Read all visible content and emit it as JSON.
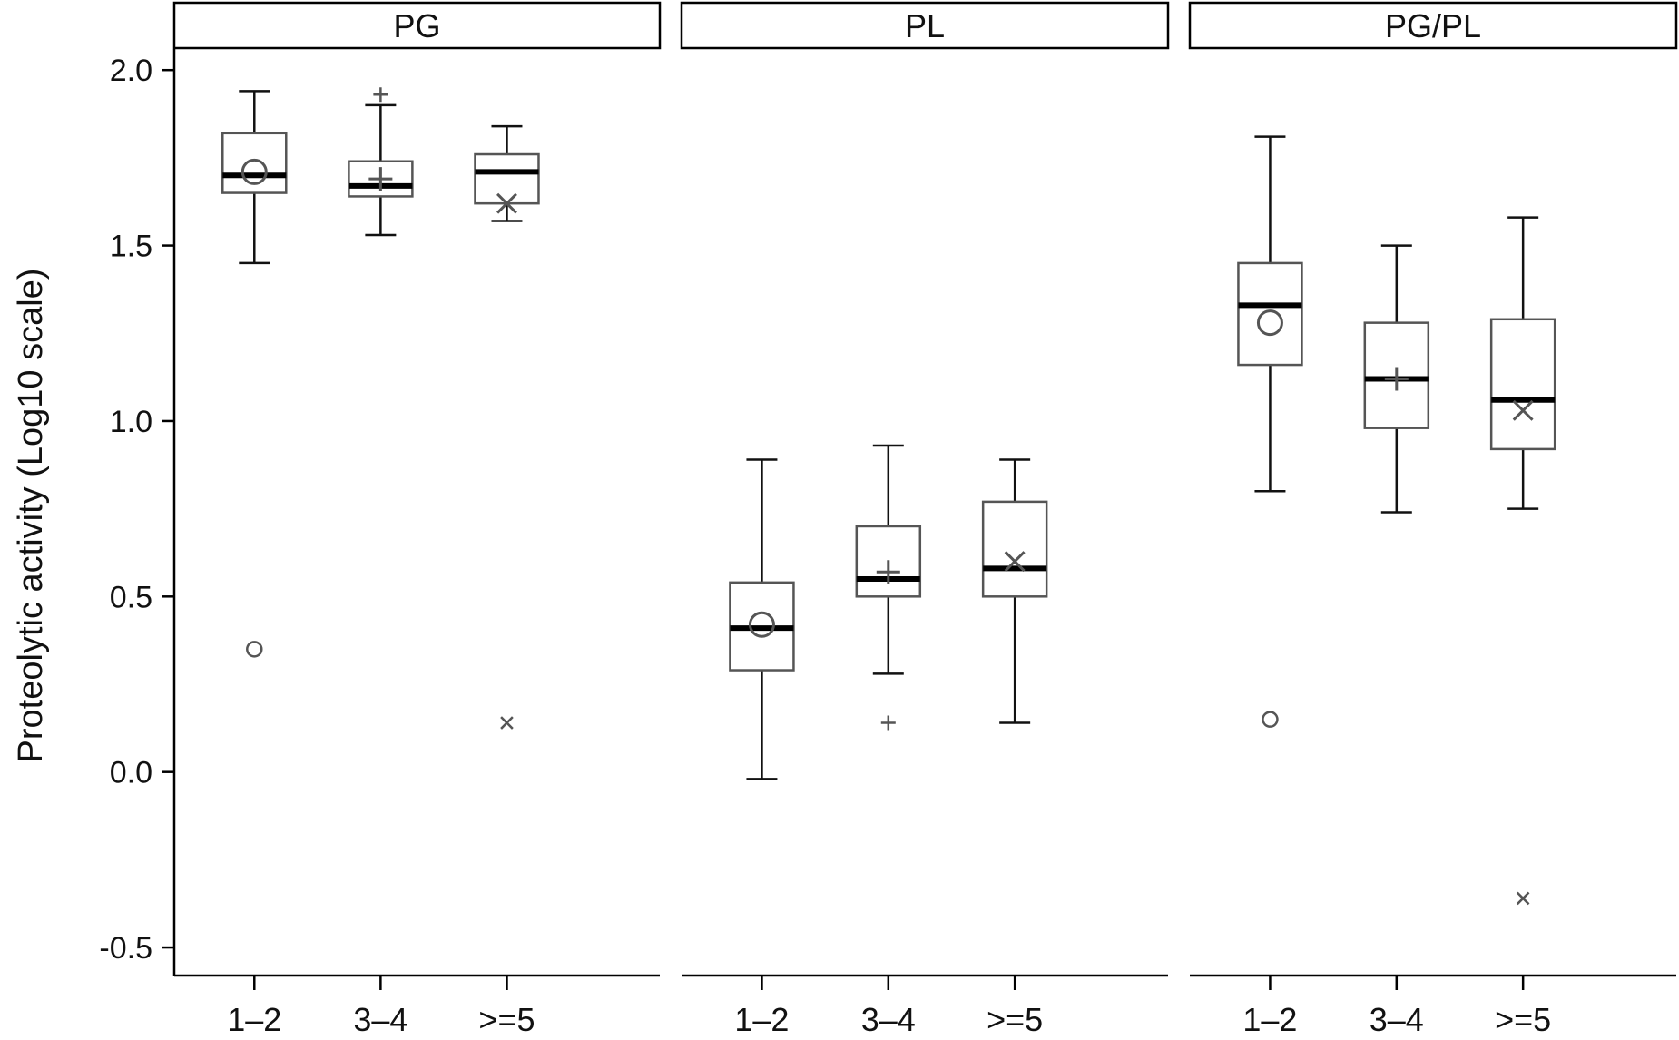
{
  "chart_data": {
    "type": "boxplot",
    "ylabel": "Proteolytic activity (Log10 scale)",
    "ylim": [
      -0.58,
      2.06
    ],
    "yticks": [
      -0.5,
      0.0,
      0.5,
      1.0,
      1.5,
      2.0
    ],
    "ytick_labels": [
      "-0.5",
      "0.0",
      "0.5",
      "1.0",
      "1.5",
      "2.0"
    ],
    "categories": [
      "1–2",
      "3–4",
      ">=5"
    ],
    "mean_markers": [
      "circle",
      "plus",
      "cross"
    ],
    "grid": false,
    "panels": [
      {
        "name": "PG",
        "boxes": [
          {
            "category": "1–2",
            "whisker_low": 1.45,
            "q1": 1.65,
            "median": 1.7,
            "q3": 1.82,
            "whisker_high": 1.94,
            "mean": 1.71,
            "outliers": [
              0.35
            ]
          },
          {
            "category": "3–4",
            "whisker_low": 1.53,
            "q1": 1.64,
            "median": 1.67,
            "q3": 1.74,
            "whisker_high": 1.9,
            "mean": 1.69,
            "outliers": [
              1.93
            ]
          },
          {
            "category": ">=5",
            "whisker_low": 1.57,
            "q1": 1.62,
            "median": 1.71,
            "q3": 1.76,
            "whisker_high": 1.84,
            "mean": 1.62,
            "outliers": [
              0.14
            ]
          }
        ]
      },
      {
        "name": "PL",
        "boxes": [
          {
            "category": "1–2",
            "whisker_low": -0.02,
            "q1": 0.29,
            "median": 0.41,
            "q3": 0.54,
            "whisker_high": 0.89,
            "mean": 0.42,
            "outliers": []
          },
          {
            "category": "3–4",
            "whisker_low": 0.28,
            "q1": 0.5,
            "median": 0.55,
            "q3": 0.7,
            "whisker_high": 0.93,
            "mean": 0.57,
            "outliers": [
              0.14
            ]
          },
          {
            "category": ">=5",
            "whisker_low": 0.14,
            "q1": 0.5,
            "median": 0.58,
            "q3": 0.77,
            "whisker_high": 0.89,
            "mean": 0.6,
            "outliers": []
          }
        ]
      },
      {
        "name": "PG/PL",
        "boxes": [
          {
            "category": "1–2",
            "whisker_low": 0.8,
            "q1": 1.16,
            "median": 1.33,
            "q3": 1.45,
            "whisker_high": 1.81,
            "mean": 1.28,
            "outliers": [
              0.15
            ]
          },
          {
            "category": "3–4",
            "whisker_low": 0.74,
            "q1": 0.98,
            "median": 1.12,
            "q3": 1.28,
            "whisker_high": 1.5,
            "mean": 1.12,
            "outliers": []
          },
          {
            "category": ">=5",
            "whisker_low": 0.75,
            "q1": 0.92,
            "median": 1.06,
            "q3": 1.29,
            "whisker_high": 1.58,
            "mean": 1.03,
            "outliers": [
              -0.36
            ]
          }
        ]
      }
    ]
  }
}
